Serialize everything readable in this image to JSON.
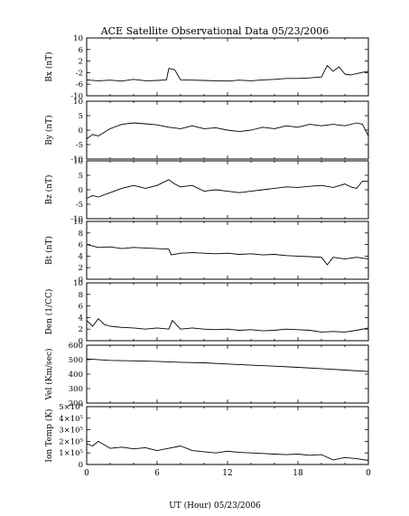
{
  "title": "ACE Satellite Observational Data   05/23/2006",
  "xlabel": "UT (Hour)   05/23/2006",
  "x_ticks": [
    "0",
    "6",
    "12",
    "18",
    "0"
  ],
  "chart_data": [
    {
      "type": "line",
      "ylabel": "Bx (nT)",
      "ylim": [
        -10,
        10
      ],
      "y_ticks": [
        "10",
        "6",
        "2",
        "-2",
        "-6",
        "-10"
      ],
      "y_tick_values": [
        10,
        6,
        2,
        -2,
        -6,
        -10
      ],
      "x": [
        0,
        1,
        2,
        3,
        4,
        5,
        6,
        6.8,
        7,
        7.5,
        8,
        9,
        10,
        11,
        12,
        13,
        14,
        15,
        16,
        17,
        18,
        19,
        20,
        20.5,
        21,
        21.5,
        22,
        22.5,
        23,
        24
      ],
      "values": [
        -4.5,
        -4.8,
        -4.6,
        -4.9,
        -4.3,
        -4.8,
        -4.7,
        -4.5,
        -0.5,
        -1.0,
        -4.5,
        -4.6,
        -4.7,
        -4.8,
        -4.9,
        -4.6,
        -4.8,
        -4.5,
        -4.3,
        -4.0,
        -4.0,
        -3.8,
        -3.5,
        0.5,
        -1.5,
        0.0,
        -2.5,
        -2.8,
        -2.3,
        -1.5
      ]
    },
    {
      "type": "line",
      "ylabel": "By (nT)",
      "ylim": [
        -10,
        10
      ],
      "y_ticks": [
        "10",
        "5",
        "0",
        "-5",
        "-10"
      ],
      "y_tick_values": [
        10,
        5,
        0,
        -5,
        -10
      ],
      "x": [
        0,
        0.5,
        1,
        2,
        3,
        4,
        5,
        6,
        7,
        8,
        9,
        10,
        11,
        12,
        13,
        14,
        15,
        16,
        17,
        18,
        19,
        20,
        21,
        22,
        23,
        23.5,
        24
      ],
      "values": [
        -3.0,
        -1.5,
        -2.0,
        0.5,
        2.0,
        2.5,
        2.2,
        1.8,
        1.0,
        0.5,
        1.5,
        0.5,
        0.8,
        0.0,
        -0.5,
        0.0,
        1.0,
        0.5,
        1.5,
        1.0,
        2.0,
        1.5,
        2.0,
        1.5,
        2.5,
        2.0,
        -2.0
      ]
    },
    {
      "type": "line",
      "ylabel": "Bz (nT)",
      "ylim": [
        -10,
        10
      ],
      "y_ticks": [
        "10",
        "5",
        "0",
        "-5",
        "-10"
      ],
      "y_tick_values": [
        10,
        5,
        0,
        -5,
        -10
      ],
      "x": [
        0,
        0.5,
        1,
        2,
        3,
        4,
        5,
        6,
        7,
        7.5,
        8,
        9,
        10,
        11,
        12,
        13,
        14,
        15,
        16,
        17,
        18,
        19,
        20,
        21,
        22,
        22.5,
        23,
        23.5,
        24
      ],
      "values": [
        -3.0,
        -2.0,
        -2.5,
        -1.0,
        0.5,
        1.5,
        0.5,
        1.5,
        3.5,
        2.0,
        1.0,
        1.5,
        -0.5,
        0.0,
        -0.5,
        -1.0,
        -0.5,
        0.0,
        0.5,
        1.0,
        0.8,
        1.2,
        1.5,
        0.8,
        2.0,
        1.0,
        0.5,
        3.0,
        3.0
      ]
    },
    {
      "type": "line",
      "ylabel": "Bt (nT)",
      "ylim": [
        0,
        10
      ],
      "y_ticks": [
        "10",
        "8",
        "6",
        "4",
        "2",
        "0"
      ],
      "y_tick_values": [
        10,
        8,
        6,
        4,
        2,
        0
      ],
      "x": [
        0,
        1,
        2,
        3,
        4,
        5,
        6,
        7,
        7.2,
        8,
        9,
        10,
        11,
        12,
        13,
        14,
        15,
        16,
        17,
        18,
        19,
        20,
        20.5,
        21,
        22,
        23,
        24
      ],
      "values": [
        6.0,
        5.5,
        5.6,
        5.3,
        5.5,
        5.4,
        5.3,
        5.2,
        4.2,
        4.5,
        4.6,
        4.5,
        4.4,
        4.5,
        4.3,
        4.4,
        4.2,
        4.3,
        4.1,
        4.0,
        3.9,
        3.8,
        2.5,
        3.8,
        3.5,
        3.8,
        3.5
      ]
    },
    {
      "type": "line",
      "ylabel": "Den (1/CC)",
      "ylim": [
        0,
        10
      ],
      "y_ticks": [
        "10",
        "8",
        "6",
        "4",
        "2",
        "0"
      ],
      "y_tick_values": [
        10,
        8,
        6,
        4,
        2,
        0
      ],
      "x": [
        0,
        0.5,
        1,
        1.5,
        2,
        3,
        4,
        5,
        6,
        7,
        7.3,
        8,
        9,
        10,
        11,
        12,
        13,
        14,
        15,
        16,
        17,
        18,
        19,
        20,
        21,
        22,
        23,
        24
      ],
      "values": [
        3.5,
        2.5,
        3.8,
        2.8,
        2.5,
        2.3,
        2.2,
        2.0,
        2.2,
        2.0,
        3.5,
        2.0,
        2.2,
        2.0,
        1.9,
        2.0,
        1.8,
        1.9,
        1.7,
        1.8,
        2.0,
        1.9,
        1.8,
        1.5,
        1.6,
        1.5,
        1.8,
        2.2
      ]
    },
    {
      "type": "line",
      "ylabel": "Vel (Km/sec)",
      "ylim": [
        200,
        600
      ],
      "y_ticks": [
        "600",
        "500",
        "400",
        "300",
        "200"
      ],
      "y_tick_values": [
        600,
        500,
        400,
        300,
        200
      ],
      "x": [
        0,
        2,
        4,
        6,
        8,
        10,
        12,
        14,
        16,
        18,
        20,
        22,
        24
      ],
      "values": [
        505,
        495,
        492,
        488,
        482,
        478,
        470,
        462,
        455,
        447,
        438,
        428,
        418
      ]
    },
    {
      "type": "line",
      "ylabel": "Ion Temp (K)",
      "ylim": [
        0,
        500000
      ],
      "y_ticks": [
        "5×10⁵",
        "4×10⁵",
        "3×10⁵",
        "2×10⁵",
        "1×10⁵",
        "0"
      ],
      "y_tick_values": [
        500000,
        400000,
        300000,
        200000,
        100000,
        0
      ],
      "x": [
        0,
        0.5,
        1,
        2,
        3,
        4,
        5,
        6,
        7,
        8,
        9,
        10,
        11,
        12,
        13,
        14,
        15,
        16,
        17,
        18,
        19,
        20,
        21,
        22,
        23,
        24
      ],
      "values": [
        180000,
        160000,
        200000,
        140000,
        150000,
        135000,
        145000,
        120000,
        140000,
        160000,
        120000,
        110000,
        100000,
        115000,
        105000,
        100000,
        95000,
        90000,
        85000,
        90000,
        80000,
        85000,
        40000,
        60000,
        50000,
        35000
      ]
    }
  ]
}
